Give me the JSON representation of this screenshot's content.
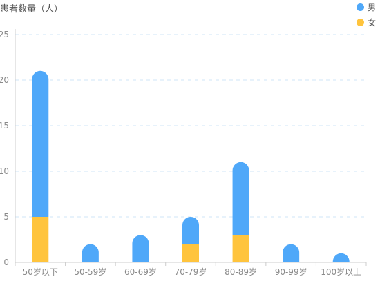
{
  "chart_data": {
    "type": "bar",
    "stacked": true,
    "ylabel": "患者数量（人）",
    "categories": [
      "50岁以下",
      "50-59岁",
      "60-69岁",
      "70-79岁",
      "80-89岁",
      "90-99岁",
      "100岁以上"
    ],
    "series": [
      {
        "name": "女",
        "color": "#ffc43d",
        "values": [
          5,
          0,
          0,
          2,
          3,
          0,
          0
        ]
      },
      {
        "name": "男",
        "color": "#4fa8f9",
        "values": [
          16,
          2,
          3,
          3,
          8,
          2,
          1
        ]
      }
    ],
    "ylim": [
      0,
      25
    ],
    "yticks": [
      0,
      5,
      10,
      15,
      20,
      25
    ],
    "grid": true,
    "legend_position": "top-right"
  }
}
